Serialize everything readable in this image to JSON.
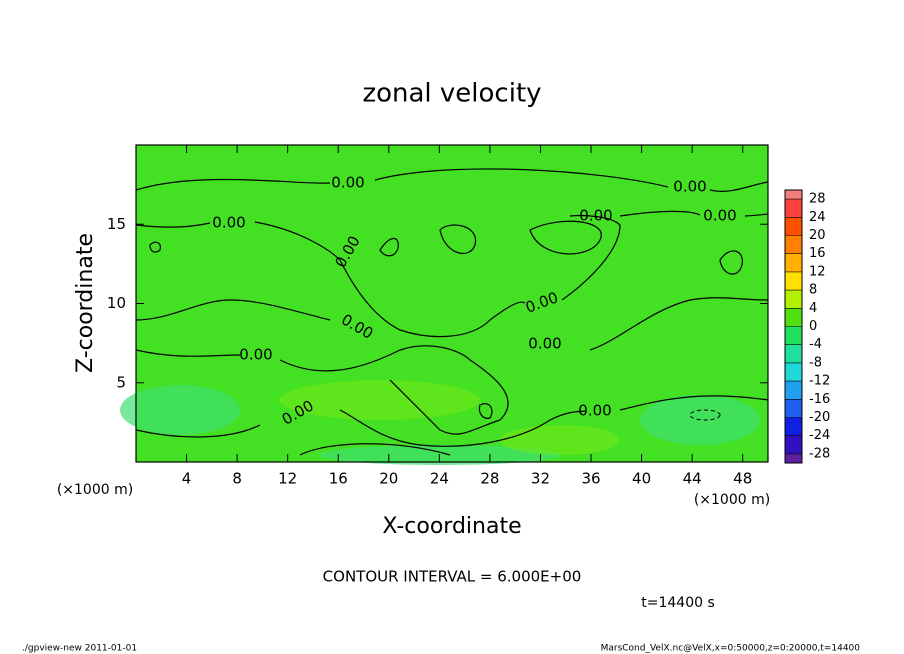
{
  "chart_data": {
    "type": "contour",
    "title": "zonal velocity",
    "xlabel": "X-coordinate",
    "ylabel": "Z-coordinate",
    "x_unit": "(×1000 m)",
    "x_unit_right": "(×1000 m)",
    "xlim": [
      0,
      50
    ],
    "xticks": [
      4,
      8,
      12,
      16,
      20,
      24,
      28,
      32,
      36,
      40,
      44,
      48
    ],
    "ylim": [
      0,
      20
    ],
    "yticks": [
      5,
      10,
      15
    ],
    "contour_labels": [
      "0.00",
      "0.00",
      "0.00",
      "0.00",
      "0.00",
      "0.00",
      "0.00",
      "0.00",
      "0.00",
      "0.00",
      "0.00",
      "0.00"
    ],
    "colorbar": {
      "ticks": [
        28,
        24,
        20,
        16,
        12,
        8,
        4,
        0,
        -4,
        -8,
        -12,
        -16,
        -20,
        -24,
        -28
      ],
      "colors": [
        "#f08080",
        "#ff4040",
        "#ff5000",
        "#ff8000",
        "#ffb000",
        "#ffe000",
        "#b0f000",
        "#50e010",
        "#20e060",
        "#20e0a0",
        "#20d8d8",
        "#20a0f0",
        "#2060f0",
        "#1020e0",
        "#3010c0",
        "#6020a0"
      ]
    },
    "contour_interval": "CONTOUR INTERVAL = 6.000E+00",
    "time_label": "t=14400 s",
    "footer_left": "./gpview-new  2011-01-01",
    "footer_right": "MarsCond_VelX.nc@VelX,x=0:50000,z=0:20000,t=14400"
  }
}
